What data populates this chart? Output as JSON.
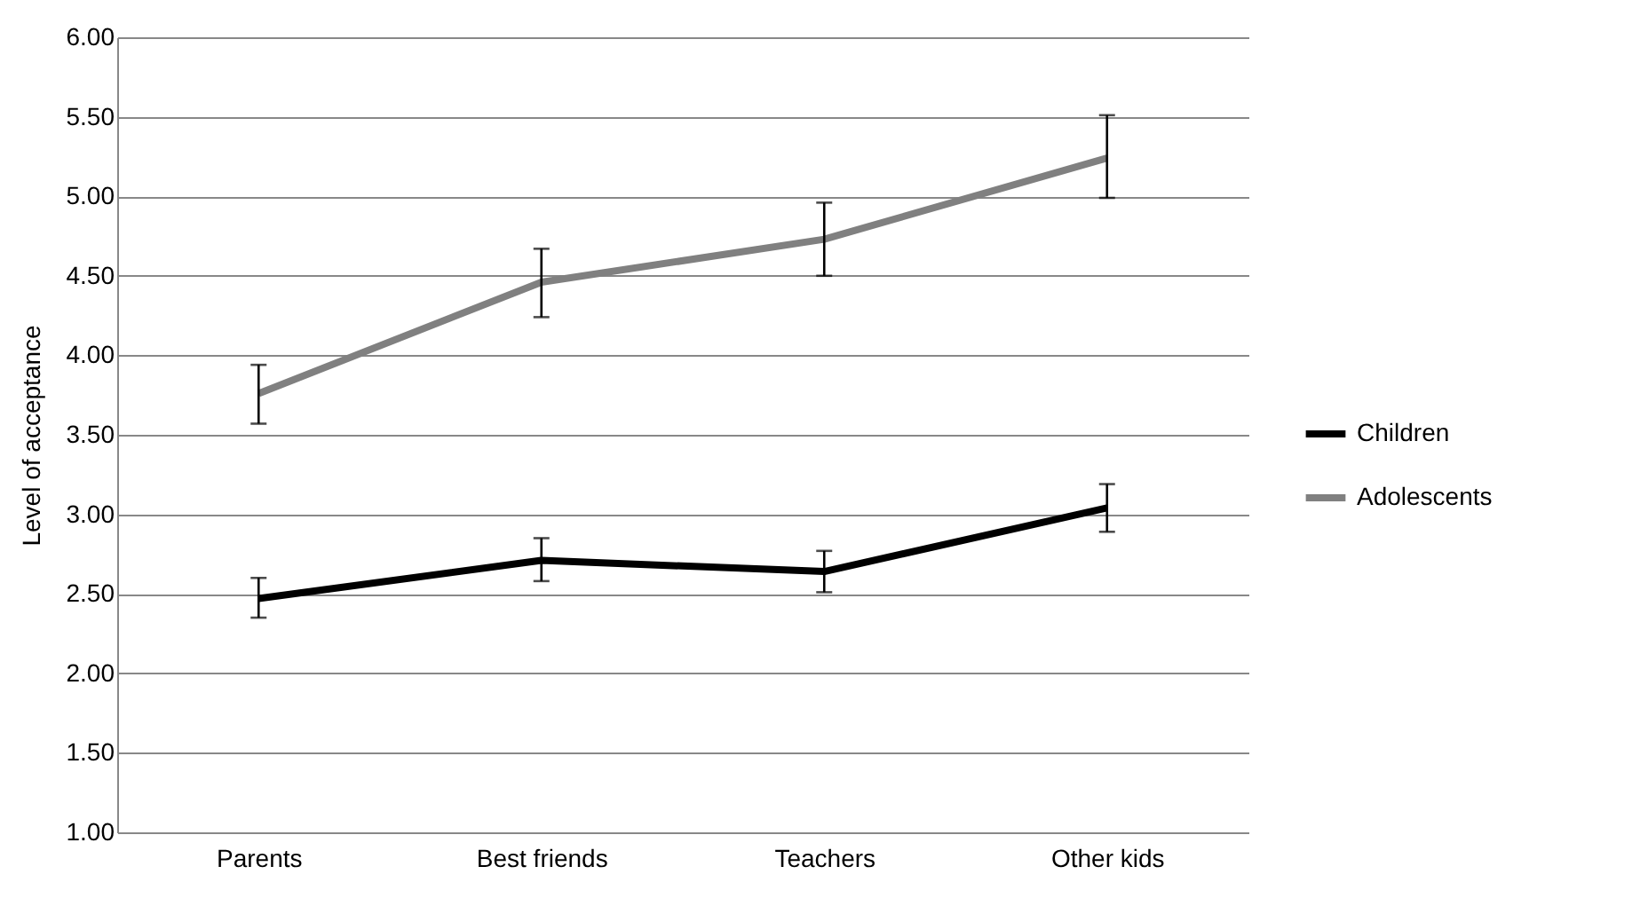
{
  "chart_data": {
    "type": "line",
    "ylabel": "Level of acceptance",
    "categories": [
      "Parents",
      "Best friends",
      "Teachers",
      "Other kids"
    ],
    "series": [
      {
        "name": "Children",
        "color": "#000000",
        "values": [
          2.47,
          2.71,
          2.64,
          3.04
        ],
        "errors": [
          [
            2.35,
            2.6
          ],
          [
            2.58,
            2.85
          ],
          [
            2.51,
            2.77
          ],
          [
            2.89,
            3.19
          ]
        ]
      },
      {
        "name": "Adolescents",
        "color": "#808080",
        "values": [
          3.76,
          4.46,
          4.73,
          5.24
        ],
        "errors": [
          [
            3.57,
            3.94
          ],
          [
            4.24,
            4.67
          ],
          [
            4.5,
            4.96
          ],
          [
            4.99,
            5.51
          ]
        ]
      }
    ],
    "ylim": [
      1,
      6
    ],
    "yticks": [
      {
        "value": 1,
        "label": "1.00"
      },
      {
        "value": 1.5,
        "label": "1.50"
      },
      {
        "value": 2,
        "label": "2.00"
      },
      {
        "value": 2.5,
        "label": "2.50"
      },
      {
        "value": 3,
        "label": "3.00"
      },
      {
        "value": 3.5,
        "label": "3.50"
      },
      {
        "value": 4,
        "label": "4.00"
      },
      {
        "value": 4.5,
        "label": "4.50"
      },
      {
        "value": 5,
        "label": "5.00"
      },
      {
        "value": 5.5,
        "label": "5.50"
      },
      {
        "value": 6,
        "label": "6.00"
      }
    ],
    "grid": "y",
    "legend": "right",
    "marker": "none",
    "line_style": "solid"
  }
}
